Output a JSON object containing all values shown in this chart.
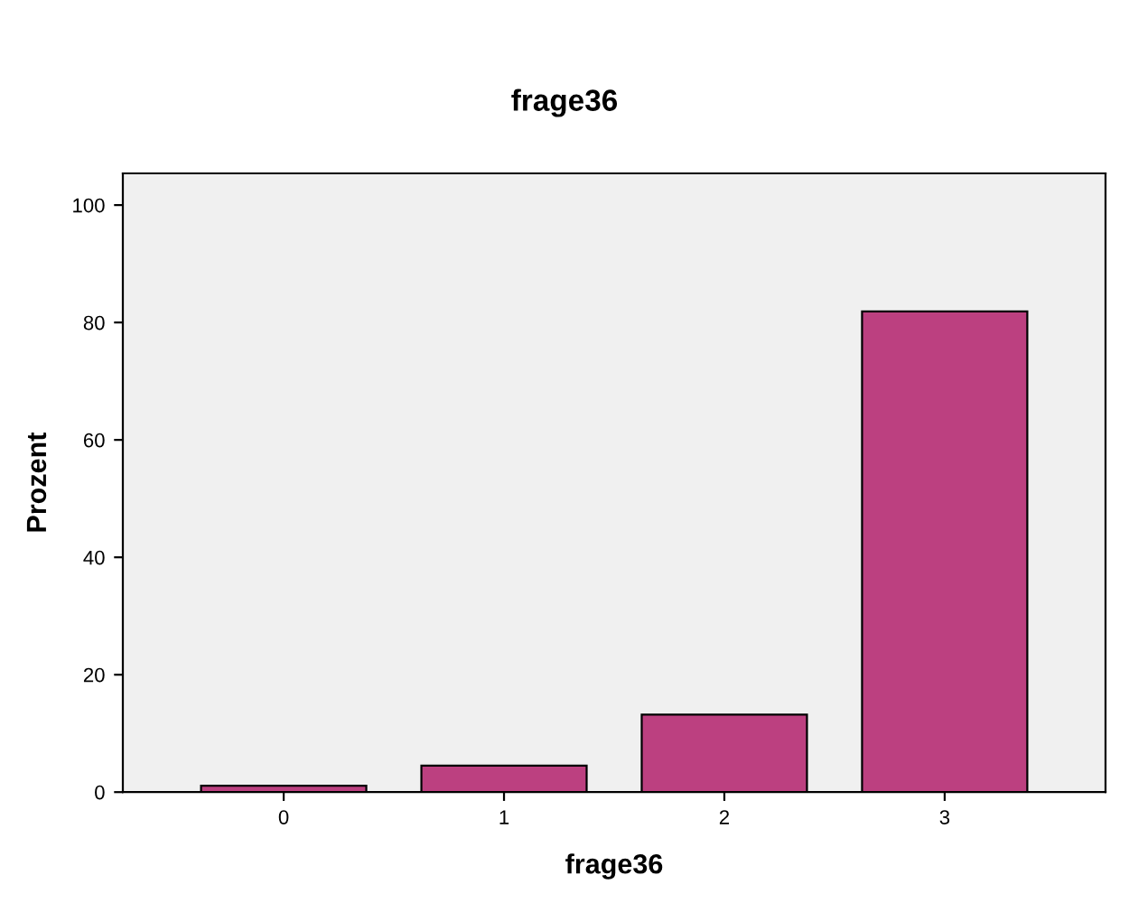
{
  "chart_data": {
    "type": "bar",
    "title": "frage36",
    "xlabel": "frage36",
    "ylabel": "Prozent",
    "categories": [
      "0",
      "1",
      "2",
      "3"
    ],
    "values": [
      1.1,
      4.5,
      13.2,
      81.9
    ],
    "color": "#bc4080",
    "ylim": [
      0,
      105.4
    ],
    "yticks": [
      0,
      20,
      40,
      60,
      80,
      100
    ],
    "grid": false,
    "legend": false
  }
}
